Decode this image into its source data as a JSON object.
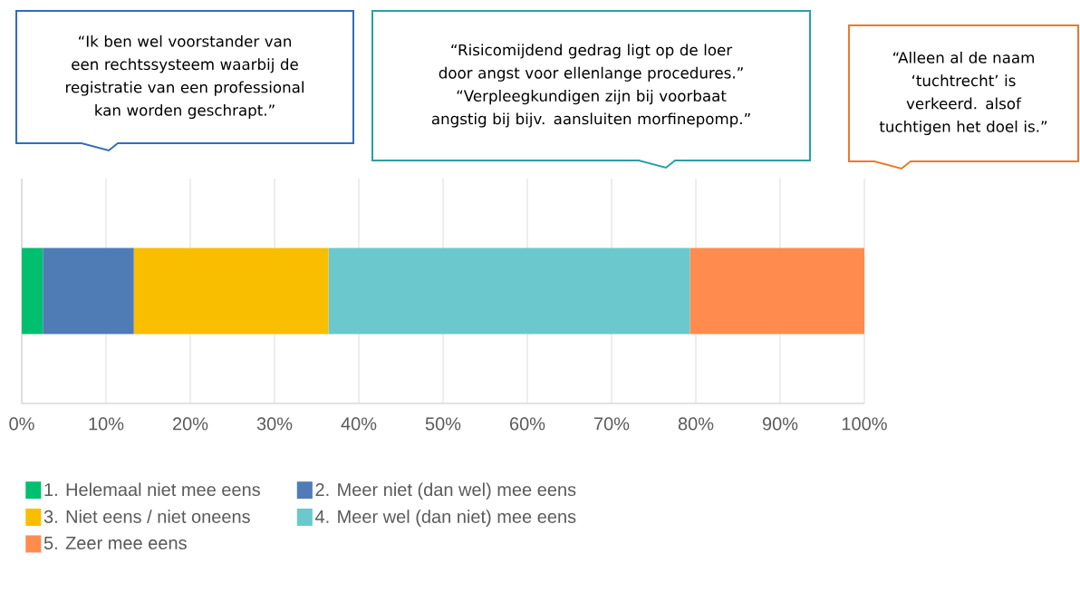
{
  "chart_data": {
    "type": "bar",
    "orientation": "horizontal",
    "stacked": true,
    "categories": [
      null
    ],
    "series": [
      {
        "name": "1. Helemaal niet mee eens",
        "color": "#00bf6f",
        "values": [
          2.5
        ]
      },
      {
        "name": "2. Meer niet (dan wel) mee eens",
        "color": "#507cb6",
        "values": [
          10.8
        ]
      },
      {
        "name": "3. Niet eens / niet oneens",
        "color": "#f9be00",
        "values": [
          23.1
        ]
      },
      {
        "name": "4. Meer wel (dan niet) mee eens",
        "color": "#6bc8cd",
        "values": [
          42.9
        ]
      },
      {
        "name": "5. Zeer mee eens",
        "color": "#ff8b4f",
        "values": [
          20.7
        ]
      }
    ],
    "xlim": [
      0,
      100
    ],
    "xticks": [
      {
        "value": 0,
        "label": "0%"
      },
      {
        "value": 10,
        "label": "10%"
      },
      {
        "value": 20,
        "label": "20%"
      },
      {
        "value": 30,
        "label": "30%"
      },
      {
        "value": 40,
        "label": "40%"
      },
      {
        "value": 50,
        "label": "50%"
      },
      {
        "value": 60,
        "label": "60%"
      },
      {
        "value": 70,
        "label": "70%"
      },
      {
        "value": 80,
        "label": "80%"
      },
      {
        "value": 90,
        "label": "90%"
      },
      {
        "value": 100,
        "label": "100%"
      }
    ],
    "grid": "x",
    "legend": "bottom",
    "tick_labels": "x",
    "annotations": [
      "“Ik ben wel voorstander van een rechtssysteem waarbij de registratie van een professional kan worden geschrapt.”",
      "“Risicomijdend gedrag ligt op de loer door angst voor ellenlange procedures.” “Verpleegkundigen zijn bij voorbaat angstig bij bijv. aansluiten morfinepomp.”",
      "“Alleen al de naam ‘tuchtrecht’ is verkeerd. alsof tuchtigen het doel is.”"
    ]
  }
}
